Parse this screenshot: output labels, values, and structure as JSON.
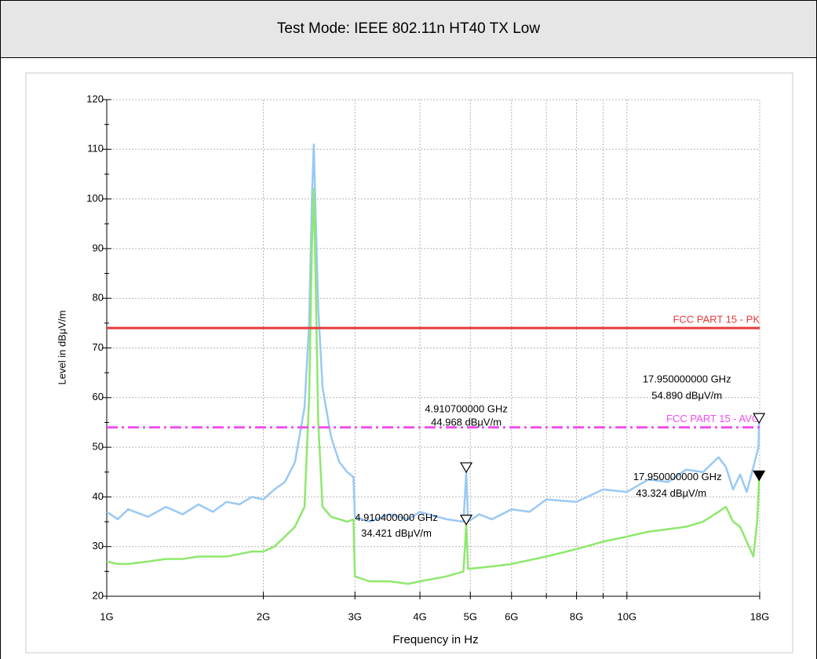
{
  "header": {
    "title": "Test Mode: IEEE 802.11n HT40 TX Low"
  },
  "chart_data": {
    "type": "line",
    "x_label": "Frequency in Hz",
    "y_label": "Level in dBμV/m",
    "xscale": "log",
    "grid": true,
    "xlim": [
      1000000000.0,
      18000000000.0
    ],
    "ylim": [
      20,
      120
    ],
    "xticks": [
      {
        "value": 1000000000.0,
        "label": "1G"
      },
      {
        "value": 2000000000.0,
        "label": "2G"
      },
      {
        "value": 3000000000.0,
        "label": "3G"
      },
      {
        "value": 4000000000.0,
        "label": "4G"
      },
      {
        "value": 5000000000.0,
        "label": "5G"
      },
      {
        "value": 6000000000.0,
        "label": "6G"
      },
      {
        "value": 8000000000.0,
        "label": "8G"
      },
      {
        "value": 10000000000.0,
        "label": "10G"
      },
      {
        "value": 18000000000.0,
        "label": "18G"
      }
    ],
    "x_minor_ticks": [
      7000000000.0,
      9000000000.0
    ],
    "yticks": [
      20,
      30,
      40,
      50,
      60,
      70,
      80,
      90,
      100,
      110,
      120
    ],
    "series": [
      {
        "color": "#99c9f5",
        "x": [
          1000000000.0,
          1050000000.0,
          1100000000.0,
          1200000000.0,
          1300000000.0,
          1400000000.0,
          1500000000.0,
          1600000000.0,
          1700000000.0,
          1800000000.0,
          1900000000.0,
          2000000000.0,
          2100000000.0,
          2200000000.0,
          2300000000.0,
          2400000000.0,
          2450000000.0,
          2480000000.0,
          2500000000.0,
          2520000000.0,
          2550000000.0,
          2600000000.0,
          2700000000.0,
          2800000000.0,
          2900000000.0,
          2980000000.0,
          3000000000.0,
          3200000000.0,
          3500000000.0,
          3800000000.0,
          4000000000.0,
          4500000000.0,
          4850000000.0,
          4910000000.0,
          4950000000.0,
          5200000000.0,
          5500000000.0,
          6000000000.0,
          6500000000.0,
          7000000000.0,
          8000000000.0,
          9000000000.0,
          10000000000.0,
          11000000000.0,
          12000000000.0,
          13000000000.0,
          14000000000.0,
          15000000000.0,
          15500000000.0,
          16000000000.0,
          16500000000.0,
          17000000000.0,
          17500000000.0,
          17900000000.0,
          17950000000.0,
          18000000000.0
        ],
        "values": [
          37,
          35.5,
          37.5,
          36,
          38,
          36.5,
          38.5,
          37,
          39,
          38.5,
          40,
          39.5,
          41.5,
          43,
          47,
          58,
          75,
          100,
          111,
          98,
          78,
          62,
          52,
          47,
          45,
          44,
          36,
          35,
          36.5,
          35.5,
          37,
          35.5,
          35,
          45,
          35,
          36.5,
          35.5,
          37.5,
          37,
          39.5,
          39,
          41.5,
          41,
          43.5,
          43,
          45.5,
          45,
          48,
          46,
          41.5,
          44.5,
          41,
          46,
          50,
          54.9,
          55
        ]
      },
      {
        "color": "#8ee86c",
        "x": [
          1000000000.0,
          1050000000.0,
          1100000000.0,
          1200000000.0,
          1300000000.0,
          1400000000.0,
          1500000000.0,
          1600000000.0,
          1700000000.0,
          1800000000.0,
          1900000000.0,
          2000000000.0,
          2100000000.0,
          2200000000.0,
          2300000000.0,
          2400000000.0,
          2450000000.0,
          2480000000.0,
          2500000000.0,
          2520000000.0,
          2550000000.0,
          2600000000.0,
          2700000000.0,
          2900000000.0,
          2980000000.0,
          3000000000.0,
          3200000000.0,
          3500000000.0,
          3800000000.0,
          4000000000.0,
          4500000000.0,
          4850000000.0,
          4910000000.0,
          4950000000.0,
          5500000000.0,
          6000000000.0,
          7000000000.0,
          8000000000.0,
          9000000000.0,
          10000000000.0,
          11000000000.0,
          12000000000.0,
          13000000000.0,
          14000000000.0,
          15000000000.0,
          15500000000.0,
          16000000000.0,
          16500000000.0,
          17000000000.0,
          17500000000.0,
          17800000000.0,
          17950000000.0,
          18000000000.0
        ],
        "values": [
          27,
          26.5,
          26.5,
          27,
          27.5,
          27.5,
          28,
          28,
          28,
          28.5,
          29,
          29,
          30,
          32,
          34,
          38,
          60,
          90,
          102,
          85,
          55,
          38,
          36,
          35,
          35.5,
          24,
          23,
          23,
          22.5,
          23,
          24,
          25,
          34.4,
          25.5,
          26,
          26.5,
          28,
          29.5,
          31,
          32,
          33,
          33.5,
          34,
          35,
          37,
          38,
          35,
          34,
          31,
          28,
          35,
          43.3,
          44
        ]
      }
    ],
    "limits": [
      {
        "name": "FCC PART 15 - PK",
        "value": 74,
        "color": "#e8393b",
        "style": "solid"
      },
      {
        "name": "FCC PART 15 - AVG",
        "value": 54,
        "color": "#f04ef0",
        "style": "dashdot"
      }
    ],
    "markers": [
      {
        "x": 4910700000,
        "x_label": "4.910700000 GHz",
        "y": 44.968,
        "y_label": "44.968 dBμV/m",
        "filled": false
      },
      {
        "x": 4910400000,
        "x_label": "4.910400000 GHz",
        "y": 34.421,
        "y_label": "34.421 dBμV/m",
        "filled": false
      },
      {
        "x": 17950000000,
        "x_label": "17.950000000 GHz",
        "y": 54.89,
        "y_label": "54.890 dBμV/m",
        "filled": false
      },
      {
        "x": 17950000000,
        "x_label": "17.950000000 GHz",
        "y": 43.324,
        "y_label": "43.324 dBμV/m",
        "filled": true
      }
    ]
  }
}
